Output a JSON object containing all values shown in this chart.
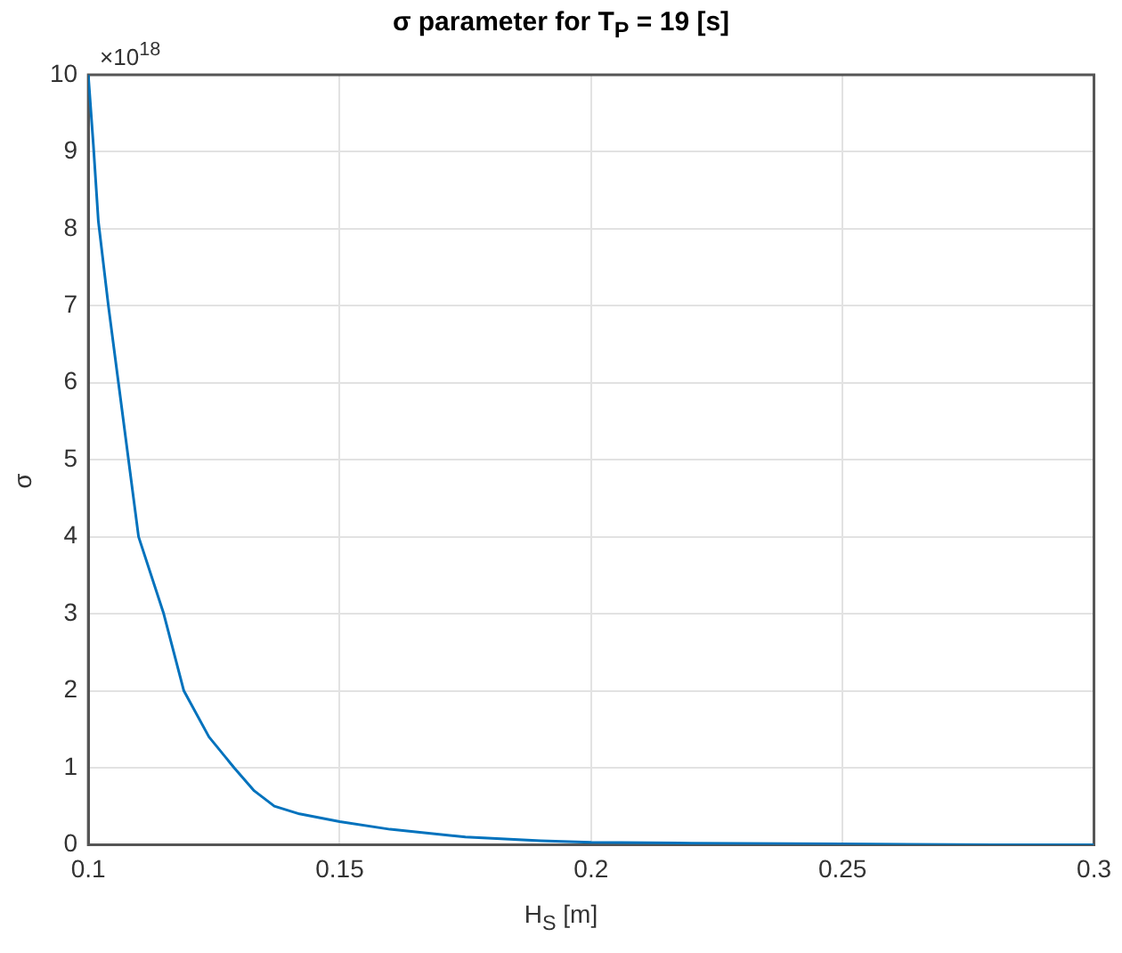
{
  "chart_data": {
    "type": "line",
    "title": "σ parameter for T$_{P}$ = 19 [s]",
    "xlabel": "H$_{S}$ [m]",
    "ylabel": "σ",
    "annotations": [
      "×10$^{18}$"
    ],
    "series": [
      {
        "color": "#0072bd",
        "x": [
          0.1,
          0.101,
          0.102,
          0.104,
          0.106,
          0.108,
          0.11,
          0.115,
          0.119,
          0.124,
          0.129,
          0.133,
          0.137,
          0.142,
          0.15,
          0.16,
          0.175,
          0.19,
          0.2,
          0.22,
          0.25,
          0.28,
          0.3
        ],
        "values": [
          10,
          9.1,
          8.1,
          7,
          6,
          5,
          4,
          3,
          2,
          1.4,
          1,
          0.7,
          0.5,
          0.4,
          0.3,
          0.2,
          0.1,
          0.05,
          0.03,
          0.02,
          0.01,
          0,
          0
        ]
      }
    ],
    "xlim": [
      0.1,
      0.3
    ],
    "xticks": [
      0.1,
      0.15,
      0.2,
      0.25,
      0.3
    ],
    "ylim": [
      0,
      10
    ],
    "yticks": [
      0,
      1,
      2,
      3,
      4,
      5,
      6,
      7,
      8,
      9,
      10
    ],
    "grid": true,
    "legend": false,
    "marker": "none",
    "line_style": "solid"
  }
}
